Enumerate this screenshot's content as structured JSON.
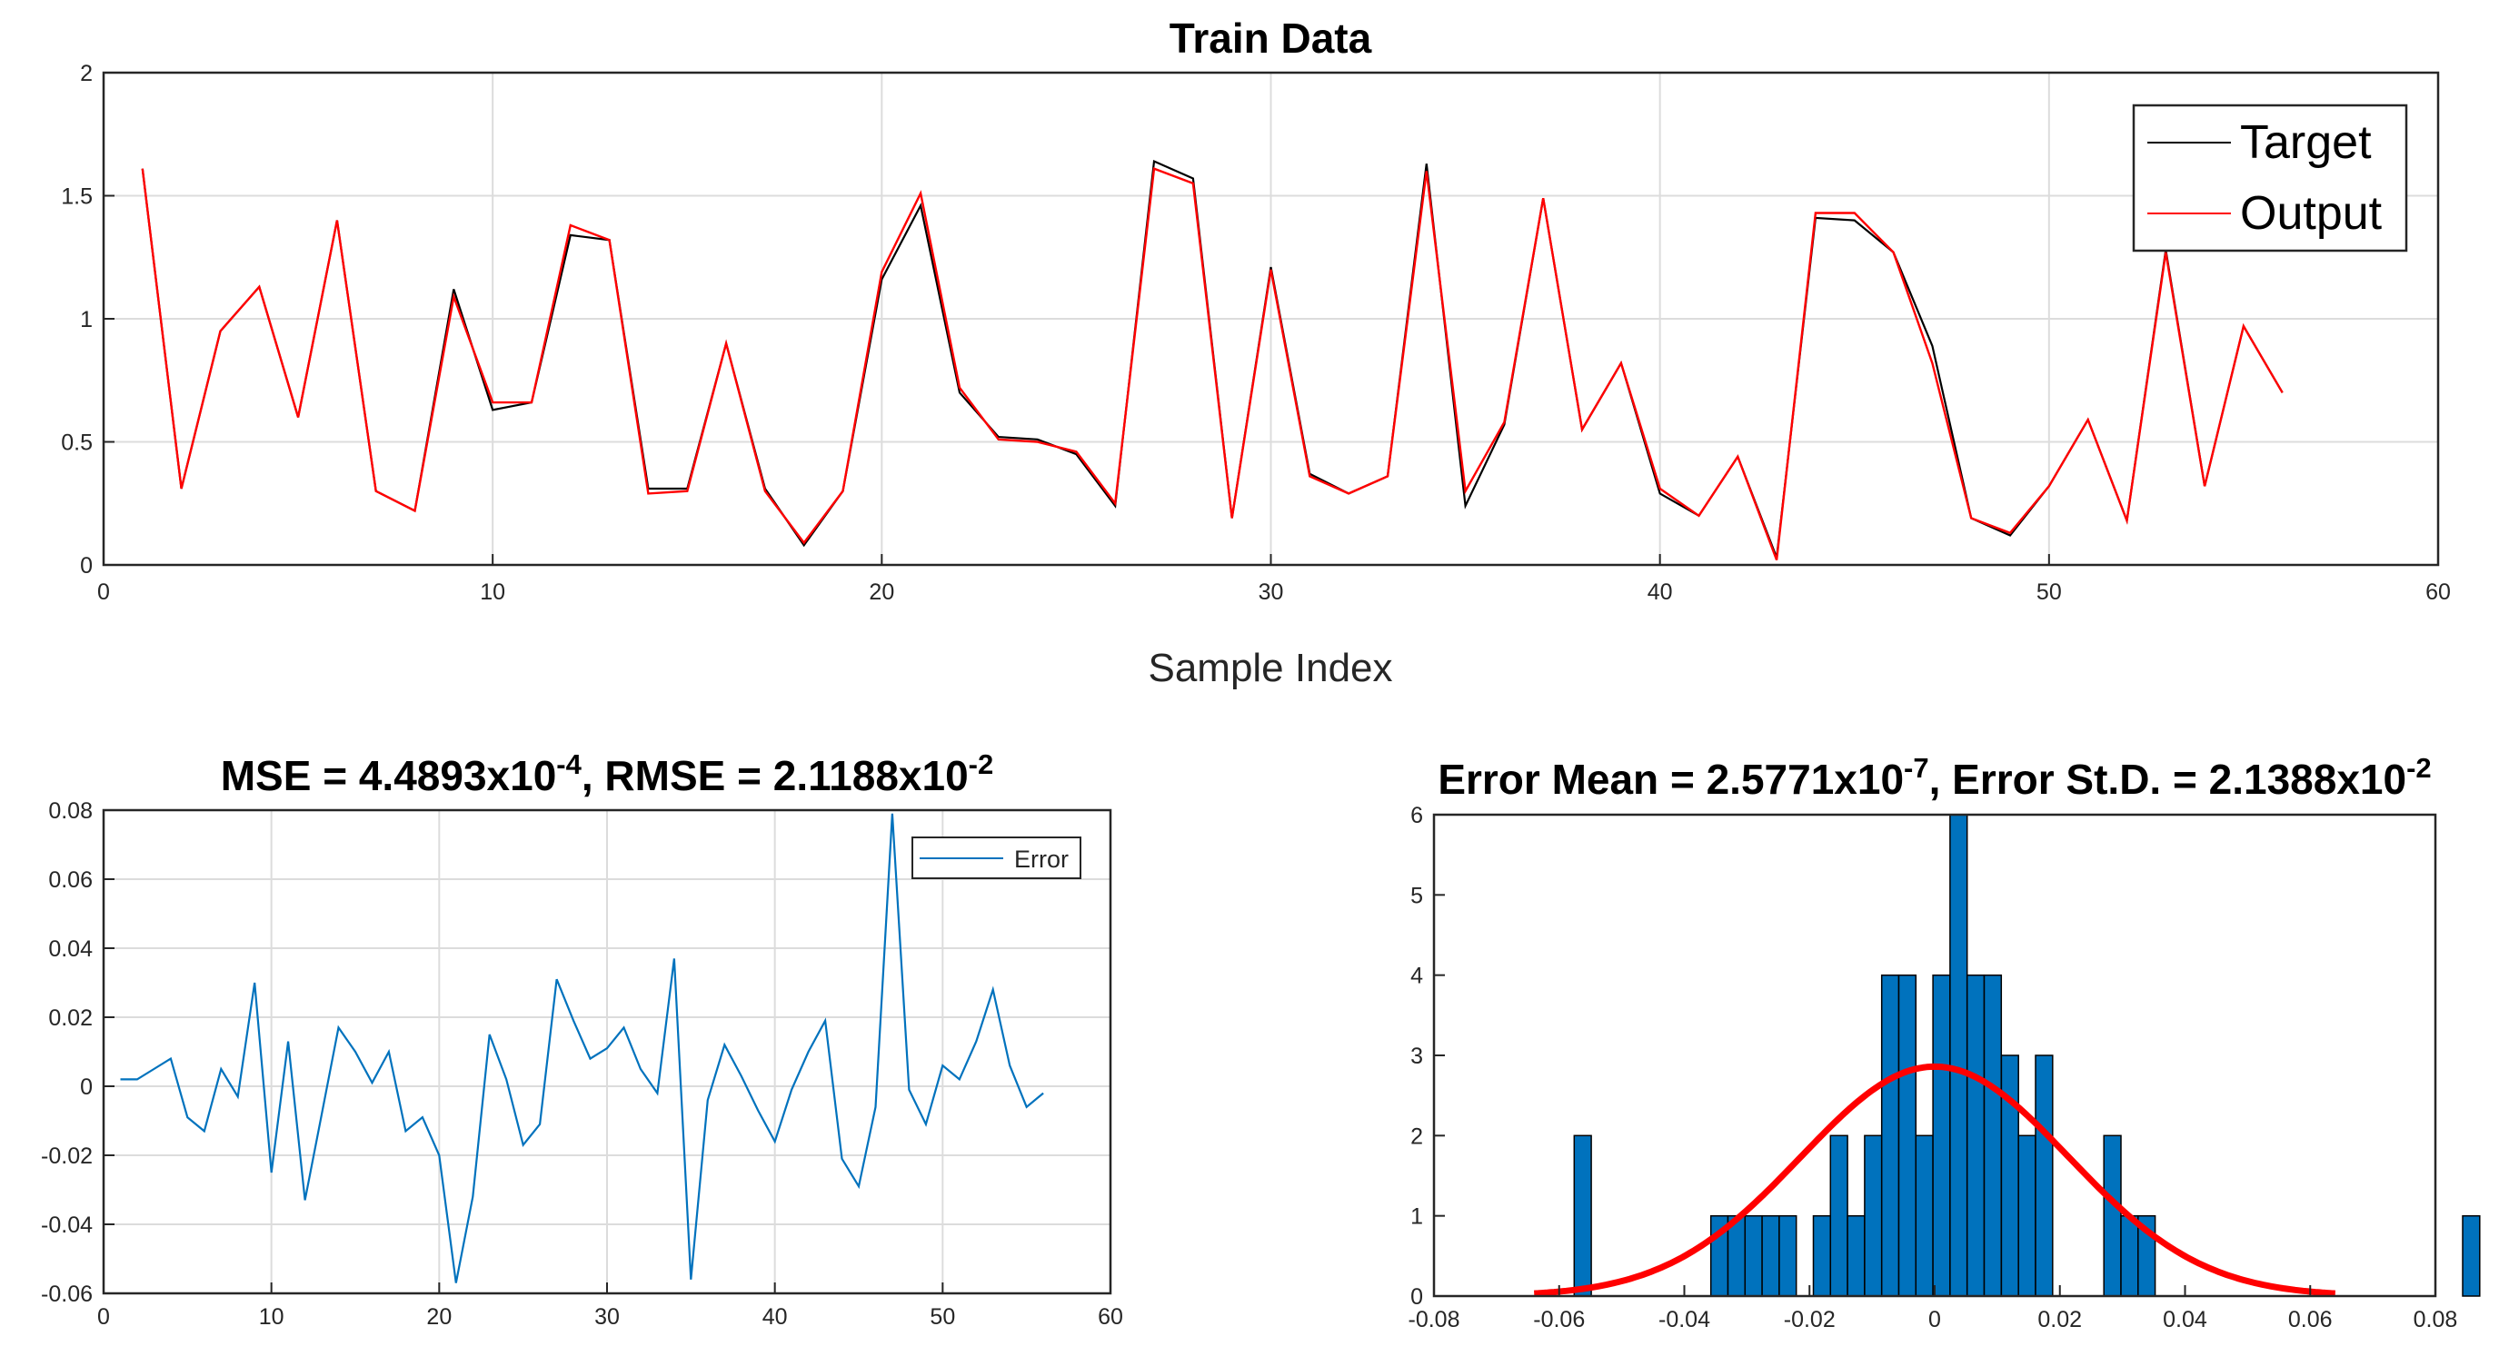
{
  "chart_data": [
    {
      "type": "line",
      "title": "Train Data",
      "xlabel": "Sample Index",
      "ylabel": "",
      "xlim": [
        0,
        60
      ],
      "ylim": [
        0,
        2
      ],
      "xticks": [
        "0",
        "10",
        "20",
        "30",
        "40",
        "50",
        "60"
      ],
      "yticks": [
        "0",
        "0.5",
        "1",
        "1.5",
        "2"
      ],
      "grid": true,
      "legend_position": "top-right",
      "x": [
        1,
        2,
        3,
        4,
        5,
        6,
        7,
        8,
        9,
        10,
        11,
        12,
        13,
        14,
        15,
        16,
        17,
        18,
        19,
        20,
        21,
        22,
        23,
        24,
        25,
        26,
        27,
        28,
        29,
        30,
        31,
        32,
        33,
        34,
        35,
        36,
        37,
        38,
        39,
        40,
        41,
        42,
        43,
        44,
        45,
        46,
        47,
        48,
        49,
        50,
        51,
        52,
        53,
        54,
        55,
        56
      ],
      "series": [
        {
          "name": "Target",
          "color": "#000000",
          "values": [
            1.61,
            0.31,
            0.95,
            1.13,
            0.6,
            1.4,
            0.3,
            0.22,
            1.12,
            0.63,
            0.66,
            1.34,
            1.32,
            0.31,
            0.31,
            0.9,
            0.31,
            0.08,
            0.3,
            1.16,
            1.46,
            0.7,
            0.52,
            0.51,
            0.45,
            0.24,
            1.64,
            1.57,
            0.19,
            1.21,
            0.37,
            0.29,
            0.36,
            1.63,
            0.24,
            0.57,
            1.49,
            0.55,
            0.82,
            0.29,
            0.2,
            0.44,
            0.03,
            1.41,
            1.4,
            1.27,
            0.89,
            0.19,
            0.12,
            0.32,
            0.59,
            0.18,
            1.28,
            0.32,
            0.97,
            0.7
          ]
        },
        {
          "name": "Output",
          "color": "#ff0000",
          "values": [
            1.61,
            0.31,
            0.95,
            1.13,
            0.6,
            1.4,
            0.3,
            0.22,
            1.09,
            0.66,
            0.66,
            1.38,
            1.32,
            0.29,
            0.3,
            0.9,
            0.3,
            0.09,
            0.3,
            1.19,
            1.51,
            0.72,
            0.51,
            0.5,
            0.46,
            0.25,
            1.61,
            1.55,
            0.19,
            1.2,
            0.36,
            0.29,
            0.36,
            1.6,
            0.3,
            0.58,
            1.49,
            0.55,
            0.82,
            0.31,
            0.2,
            0.44,
            0.02,
            1.43,
            1.43,
            1.27,
            0.82,
            0.19,
            0.13,
            0.32,
            0.59,
            0.18,
            1.27,
            0.32,
            0.97,
            0.7
          ]
        }
      ]
    },
    {
      "type": "line",
      "title_main": "MSE = 4.4893x10",
      "title_exp1": "-4",
      "title_mid": ", RMSE = 2.1188x10",
      "title_exp2": "-2",
      "xlim": [
        0,
        60
      ],
      "ylim": [
        -0.06,
        0.08
      ],
      "xticks": [
        "0",
        "10",
        "20",
        "30",
        "40",
        "50",
        "60"
      ],
      "yticks": [
        "-0.06",
        "-0.04",
        "-0.02",
        "0",
        "0.02",
        "0.04",
        "0.06",
        "0.08"
      ],
      "grid": true,
      "legend_position": "top-right",
      "x": [
        1,
        2,
        3,
        4,
        5,
        6,
        7,
        8,
        9,
        10,
        11,
        12,
        13,
        14,
        15,
        16,
        17,
        18,
        19,
        20,
        21,
        22,
        23,
        24,
        25,
        26,
        27,
        28,
        29,
        30,
        31,
        32,
        33,
        34,
        35,
        36,
        37,
        38,
        39,
        40,
        41,
        42,
        43,
        44,
        45,
        46,
        47,
        48,
        49,
        50,
        51,
        52,
        53,
        54,
        55,
        56
      ],
      "series": [
        {
          "name": "Error",
          "color": "#0072bd",
          "values": [
            0.002,
            0.002,
            0.005,
            0.008,
            -0.009,
            -0.013,
            0.005,
            -0.003,
            0.03,
            -0.025,
            0.013,
            -0.033,
            -0.008,
            0.017,
            0.01,
            0.001,
            0.01,
            -0.013,
            -0.009,
            -0.02,
            -0.057,
            -0.032,
            0.015,
            0.002,
            -0.017,
            -0.011,
            0.031,
            0.019,
            0.008,
            0.011,
            0.017,
            0.005,
            -0.002,
            0.037,
            -0.056,
            -0.004,
            0.012,
            0.003,
            -0.007,
            -0.016,
            -0.001,
            0.01,
            0.019,
            -0.021,
            -0.029,
            -0.006,
            0.079,
            -0.001,
            -0.011,
            0.006,
            0.002,
            0.013,
            0.028,
            0.006,
            -0.006,
            -0.002
          ]
        }
      ]
    },
    {
      "type": "bar",
      "subtype": "histogram",
      "title_main": "Error Mean = 2.5771x10",
      "title_exp1": "-7",
      "title_mid": ", Error St.D. = 2.1388x10",
      "title_exp2": "-2",
      "xlim": [
        -0.08,
        0.08
      ],
      "ylim": [
        0,
        6
      ],
      "xticks": [
        "-0.08",
        "-0.06",
        "-0.04",
        "-0.02",
        "0",
        "0.02",
        "0.04",
        "0.06",
        "0.08"
      ],
      "yticks": [
        "0",
        "1",
        "2",
        "3",
        "4",
        "5",
        "6"
      ],
      "grid": false,
      "bar_color": "#0072bd",
      "curve_color": "#ff0000",
      "bin_start": -0.0576,
      "bin_width": 0.00273,
      "counts": [
        2,
        0,
        0,
        0,
        0,
        0,
        0,
        0,
        1,
        1,
        1,
        1,
        1,
        0,
        1,
        2,
        1,
        2,
        4,
        4,
        2,
        4,
        6,
        4,
        4,
        3,
        2,
        3,
        0,
        0,
        0,
        2,
        1,
        1,
        0,
        0,
        0,
        0,
        0,
        0,
        0,
        0,
        0,
        0,
        0,
        0,
        0,
        0,
        0,
        0,
        0,
        0,
        1
      ],
      "fit": {
        "mean": 0.0,
        "std": 0.021388,
        "peak": 2.86,
        "x_range": [
          -0.064,
          0.064
        ]
      }
    }
  ]
}
